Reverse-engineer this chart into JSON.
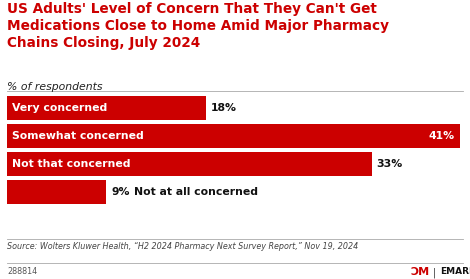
{
  "title": "US Adults' Level of Concern That They Can't Get\nMedications Close to Home Amid Major Pharmacy\nChains Closing, July 2024",
  "subtitle": "% of respondents",
  "categories": [
    "Very concerned",
    "Somewhat concerned",
    "Not that concerned",
    "Not at all concerned"
  ],
  "values": [
    18,
    41,
    33,
    9
  ],
  "bar_color": "#cc0000",
  "source": "Source: Wolters Kluwer Health, “H2 2024 Pharmacy Next Survey Report,” Nov 19, 2024",
  "chart_id": "288814",
  "background_color": "#ffffff",
  "title_color": "#cc0000",
  "max_value": 41,
  "emarketer_red": "#cc0000",
  "emarketer_label": "EMARKETER"
}
